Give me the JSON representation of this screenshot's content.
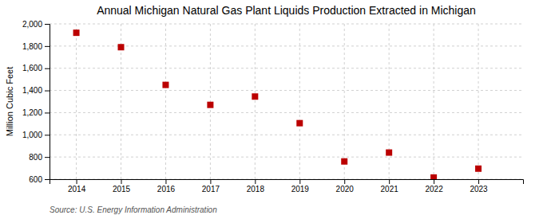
{
  "chart_data": {
    "type": "scatter",
    "title": "Annual Michigan Natural Gas Plant Liquids Production Extracted in Michigan",
    "ylabel": "Million Cubic Feet",
    "source": "Source: U.S. Energy Information Administration",
    "x": [
      2014,
      2015,
      2016,
      2017,
      2018,
      2019,
      2020,
      2021,
      2022,
      2023
    ],
    "values": [
      1920,
      1790,
      1450,
      1270,
      1345,
      1105,
      760,
      840,
      615,
      695
    ],
    "color": "#bb0000",
    "marker": "square",
    "xlim": [
      2013.4,
      2024.0
    ],
    "xticks": [
      2014,
      2015,
      2016,
      2017,
      2018,
      2019,
      2020,
      2021,
      2022,
      2023
    ],
    "ylim": [
      600,
      2000
    ],
    "yticks": [
      600,
      800,
      {
        "value": 1000,
        "label": "1,000"
      },
      {
        "value": 1200,
        "label": "1,200"
      },
      {
        "value": 1400,
        "label": "1,400"
      },
      {
        "value": 1600,
        "label": "1,600"
      },
      {
        "value": 1800,
        "label": "1,800"
      },
      {
        "value": 2000,
        "label": "2,000"
      }
    ],
    "grid": true
  }
}
